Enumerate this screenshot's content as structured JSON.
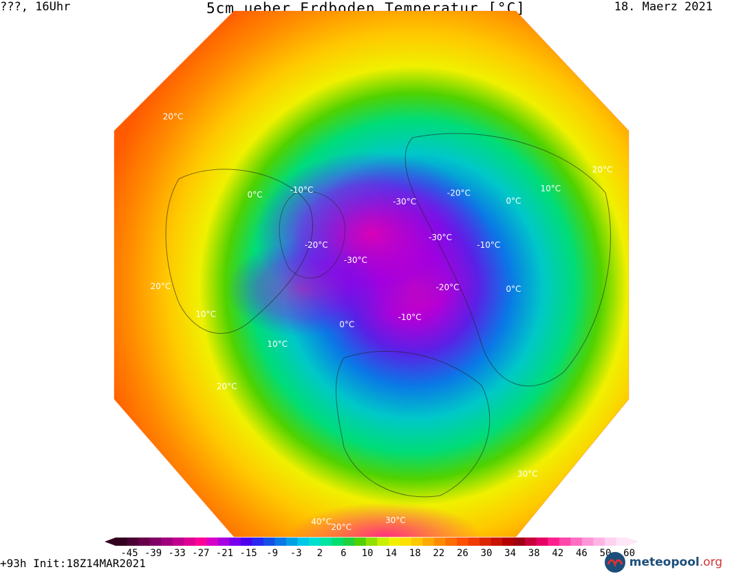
{
  "header": {
    "left": "???, 16Uhr",
    "title": "5cm ueber Erdboden Temperatur [°C]",
    "right": "18. Maerz 2021"
  },
  "footer": {
    "run_info": "+93h Init:18Z14MAR2021",
    "logo_brand": "meteopool",
    "logo_tld": ".org",
    "logo_icon": "meteopool-logo-icon"
  },
  "colorbar": {
    "tick_labels": [
      "-45",
      "-39",
      "-33",
      "-27",
      "-21",
      "-15",
      "-9",
      "-3",
      "2",
      "6",
      "10",
      "14",
      "18",
      "22",
      "26",
      "30",
      "34",
      "38",
      "42",
      "46",
      "50",
      "60"
    ],
    "colors": [
      "#32001e",
      "#4a0032",
      "#66004a",
      "#820066",
      "#a0007e",
      "#c0008e",
      "#e00096",
      "#ff0099",
      "#d800c8",
      "#a800e0",
      "#7800ee",
      "#4c00f0",
      "#2828f0",
      "#1450e6",
      "#0a78e6",
      "#00a0e6",
      "#00c8e8",
      "#00e0d0",
      "#00e6a0",
      "#00e070",
      "#20d240",
      "#50d200",
      "#90e000",
      "#c8f000",
      "#f0f000",
      "#ffe000",
      "#ffc800",
      "#ffaa00",
      "#ff8c00",
      "#ff6e00",
      "#ff5000",
      "#f03c00",
      "#dc2800",
      "#c81400",
      "#b40000",
      "#a00014",
      "#c8003c",
      "#e60064",
      "#ff1e8c",
      "#ff46aa",
      "#ff6ec4",
      "#ff96d8",
      "#ffb4e6",
      "#ffd2f0",
      "#ffe6f8"
    ]
  },
  "map_labels": [
    {
      "text": "20°C",
      "lon": -40,
      "lat": 30,
      "color": "#ffffff"
    },
    {
      "text": "20°C",
      "lon": -70,
      "lat": 25,
      "color": "#ffffff"
    },
    {
      "text": "20°C",
      "lon": 120,
      "lat": 30,
      "color": "#ffffff"
    },
    {
      "text": "20°C",
      "lon": -110,
      "lat": 20,
      "color": "#ffffff"
    },
    {
      "text": "20°C",
      "lon": 0,
      "lat": 5,
      "color": "#ffffff"
    },
    {
      "text": "10°C",
      "lon": -40,
      "lat": 48,
      "color": "#ffffff"
    },
    {
      "text": "10°C",
      "lon": 120,
      "lat": 45,
      "color": "#ffffff"
    },
    {
      "text": "10°C",
      "lon": -60,
      "lat": 35,
      "color": "#ffffff"
    },
    {
      "text": "0°C",
      "lon": -100,
      "lat": 50,
      "color": "#ffffff"
    },
    {
      "text": "0°C",
      "lon": 120,
      "lat": 55,
      "color": "#ffffff"
    },
    {
      "text": "0°C",
      "lon": 80,
      "lat": 55,
      "color": "#ffffff"
    },
    {
      "text": "0°C",
      "lon": -20,
      "lat": 65,
      "color": "#ffffff"
    },
    {
      "text": "-10°C",
      "lon": 100,
      "lat": 65,
      "color": "#ffffff"
    },
    {
      "text": "-10°C",
      "lon": -110,
      "lat": 60,
      "color": "#ffffff"
    },
    {
      "text": "-10°C",
      "lon": 20,
      "lat": 70,
      "color": "#ffffff"
    },
    {
      "text": "-20°C",
      "lon": -80,
      "lat": 68,
      "color": "#ffffff"
    },
    {
      "text": "-20°C",
      "lon": 140,
      "lat": 68,
      "color": "#ffffff"
    },
    {
      "text": "-20°C",
      "lon": 60,
      "lat": 72,
      "color": "#ffffff"
    },
    {
      "text": "-30°C",
      "lon": -60,
      "lat": 78,
      "color": "#ffffff"
    },
    {
      "text": "-30°C",
      "lon": 110,
      "lat": 78,
      "color": "#ffffff"
    },
    {
      "text": "-30°C",
      "lon": 180,
      "lat": 78,
      "color": "#ffffff"
    },
    {
      "text": "30°C",
      "lon": 10,
      "lat": 15,
      "color": "#ffffff"
    },
    {
      "text": "40°C",
      "lon": -5,
      "lat": 12,
      "color": "#ffffff"
    },
    {
      "text": "30°C",
      "lon": 40,
      "lat": 18,
      "color": "#ffffff"
    }
  ]
}
